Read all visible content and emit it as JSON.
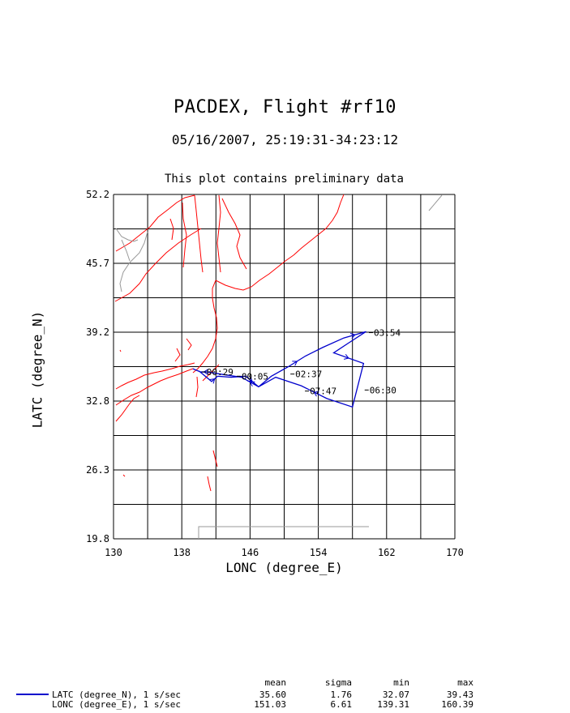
{
  "header": {
    "title": "PACDEX, Flight #rf10",
    "subtitle": "05/16/2007, 25:19:31-34:23:12",
    "note": "This plot contains preliminary data"
  },
  "axes": {
    "xlabel": "LONC (degree_E)",
    "ylabel": "LATC (degree_N)",
    "xticks": [
      "130",
      "138",
      "146",
      "154",
      "162",
      "170"
    ],
    "yticks": [
      "52.2",
      "45.7",
      "39.2",
      "32.8",
      "26.3",
      "19.8"
    ],
    "xlim": [
      130,
      170
    ],
    "ylim": [
      19.8,
      52.2
    ]
  },
  "colors": {
    "track": "#0000cc",
    "coastline": "#ff0000",
    "border": "#999999",
    "grid": "#000000"
  },
  "time_labels": [
    {
      "text": "03:54",
      "lon": 160.5,
      "lat": 39.2
    },
    {
      "text": "02:37",
      "lon": 151.3,
      "lat": 35.3
    },
    {
      "text": "00:05",
      "lon": 145.0,
      "lat": 35.1
    },
    {
      "text": "06:30",
      "lon": 160.0,
      "lat": 33.8
    },
    {
      "text": "07:47",
      "lon": 153.0,
      "lat": 33.7
    },
    {
      "text": "00:29",
      "lon": 140.9,
      "lat": 35.5
    }
  ],
  "track": [
    [
      140.0,
      35.6
    ],
    [
      140.6,
      35.2
    ],
    [
      141.5,
      34.6
    ],
    [
      142.2,
      35.1
    ],
    [
      143.8,
      35.0
    ],
    [
      145.5,
      35.1
    ],
    [
      147.0,
      34.1
    ],
    [
      148.5,
      35.1
    ],
    [
      150.5,
      36.0
    ],
    [
      152.5,
      37.0
    ],
    [
      154.5,
      37.8
    ],
    [
      157.0,
      38.7
    ],
    [
      159.6,
      39.3
    ],
    [
      157.5,
      38.2
    ],
    [
      155.8,
      37.3
    ],
    [
      159.3,
      36.3
    ],
    [
      158.0,
      32.2
    ],
    [
      155.0,
      33.0
    ],
    [
      152.0,
      34.2
    ],
    [
      149.0,
      35.0
    ],
    [
      147.0,
      34.1
    ],
    [
      145.0,
      35.0
    ],
    [
      142.5,
      35.3
    ],
    [
      141.0,
      35.5
    ],
    [
      140.2,
      35.5
    ],
    [
      139.3,
      35.8
    ]
  ],
  "stats": {
    "headers": {
      "mean": "mean",
      "sigma": "sigma",
      "min": "min",
      "max": "max"
    },
    "rows": [
      {
        "name": "LATC (degree_N), 1 s/sec",
        "mean": "35.60",
        "sigma": "1.76",
        "min": "32.07",
        "max": "39.43"
      },
      {
        "name": "LONC (degree_E), 1 s/sec",
        "mean": "151.03",
        "sigma": "6.61",
        "min": "139.31",
        "max": "160.39"
      }
    ]
  }
}
